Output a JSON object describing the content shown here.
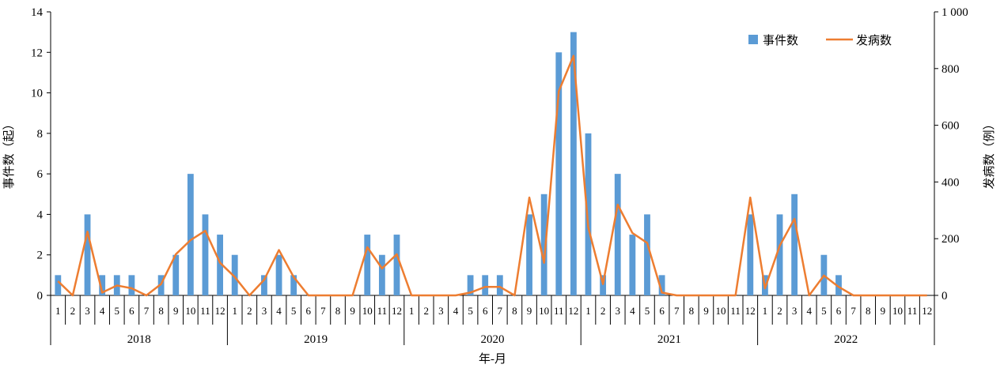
{
  "chart_data": {
    "type": "bar+line",
    "xlabel": "年-月",
    "ylabel_left": "事件数（起）",
    "ylabel_right": "发病数（例）",
    "ylim_left": [
      0,
      14
    ],
    "ylim_right": [
      0,
      1000
    ],
    "yticks_left": [
      "0",
      "2",
      "4",
      "6",
      "8",
      "10",
      "12",
      "14"
    ],
    "yticks_right": [
      "0",
      "200",
      "400",
      "600",
      "800",
      "1 000"
    ],
    "years": [
      "2018",
      "2019",
      "2020",
      "2021",
      "2022"
    ],
    "months": [
      "1",
      "2",
      "3",
      "4",
      "5",
      "6",
      "7",
      "8",
      "9",
      "10",
      "11",
      "12"
    ],
    "legend": {
      "position": "top-right"
    },
    "series": [
      {
        "name": "事件数",
        "kind": "bar",
        "axis": "left",
        "color": "#5B9BD5",
        "values": [
          1,
          0,
          4,
          1,
          1,
          1,
          0,
          1,
          2,
          6,
          4,
          3,
          2,
          0,
          1,
          2,
          1,
          0,
          0,
          0,
          0,
          3,
          2,
          3,
          0,
          0,
          0,
          0,
          1,
          1,
          1,
          0,
          4,
          5,
          12,
          13,
          8,
          1,
          6,
          3,
          4,
          1,
          0,
          0,
          0,
          0,
          0,
          4,
          1,
          4,
          5,
          0,
          2,
          1,
          0,
          0,
          0,
          0,
          0,
          0
        ]
      },
      {
        "name": "发病数",
        "kind": "line",
        "axis": "right",
        "color": "#ED7D31",
        "values": [
          50,
          0,
          225,
          10,
          35,
          25,
          0,
          40,
          145,
          195,
          228,
          115,
          65,
          0,
          55,
          160,
          65,
          0,
          0,
          0,
          0,
          170,
          95,
          145,
          0,
          0,
          0,
          0,
          10,
          30,
          30,
          0,
          345,
          115,
          720,
          845,
          240,
          40,
          320,
          220,
          185,
          10,
          0,
          0,
          0,
          0,
          0,
          345,
          25,
          175,
          270,
          0,
          70,
          30,
          0,
          0,
          0,
          0,
          0,
          0
        ]
      }
    ]
  }
}
